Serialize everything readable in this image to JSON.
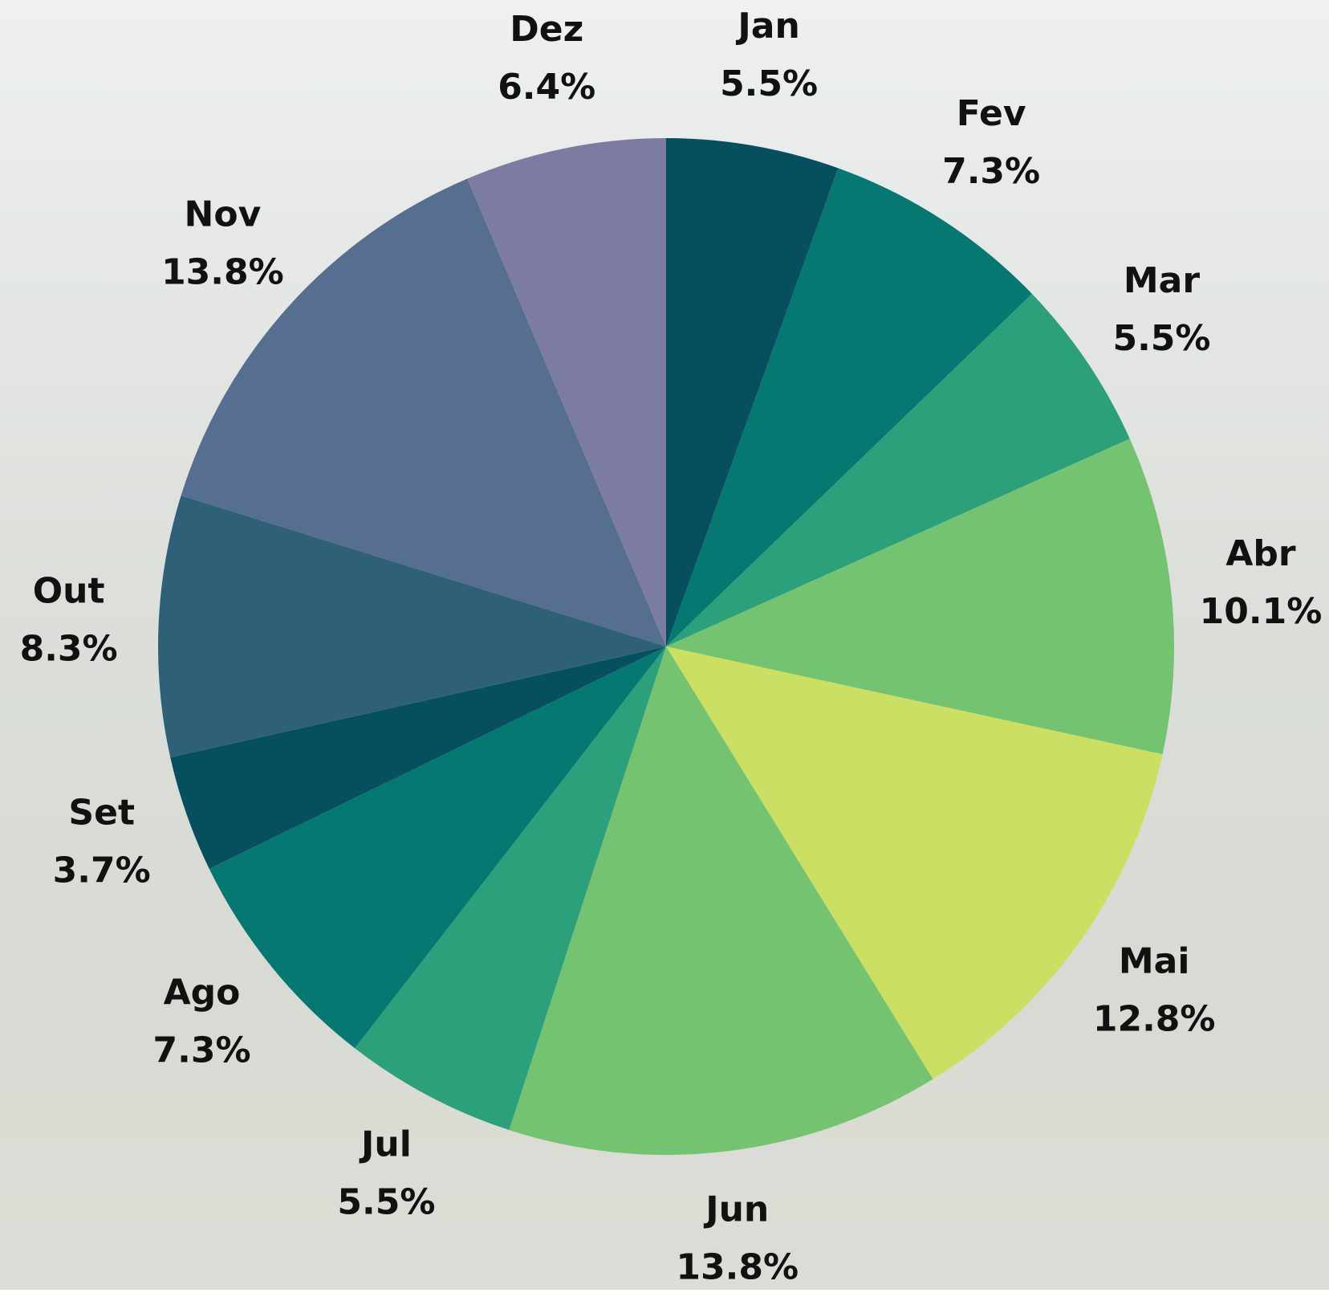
{
  "chart_data": {
    "type": "pie",
    "categories": [
      "Jan",
      "Fev",
      "Mar",
      "Abr",
      "Mai",
      "Jun",
      "Jul",
      "Ago",
      "Set",
      "Out",
      "Nov",
      "Dez"
    ],
    "values": [
      5.5,
      7.3,
      5.5,
      10.1,
      12.8,
      13.8,
      5.5,
      7.3,
      3.7,
      8.3,
      13.8,
      6.4
    ],
    "value_labels": [
      "5.5%",
      "7.3%",
      "5.5%",
      "10.1%",
      "12.8%",
      "13.8%",
      "5.5%",
      "7.3%",
      "3.7%",
      "8.3%",
      "13.8%",
      "6.4%"
    ],
    "colors": [
      "#054f5e",
      "#057872",
      "#2c9f7b",
      "#73c370",
      "#cbe062",
      "#73c370",
      "#2c9f7b",
      "#057872",
      "#054f5e",
      "#2e6077",
      "#566e90",
      "#7c7ca2"
    ]
  }
}
